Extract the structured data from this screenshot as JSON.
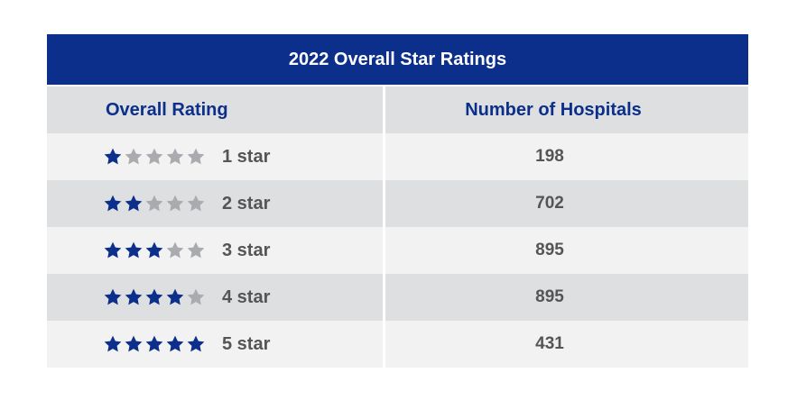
{
  "table": {
    "title": "2022 Overall Star Ratings",
    "headers": {
      "rating": "Overall Rating",
      "count": "Number of Hospitals"
    },
    "rows": [
      {
        "stars_filled": 1,
        "stars_total": 5,
        "label": "1 star",
        "count": "198"
      },
      {
        "stars_filled": 2,
        "stars_total": 5,
        "label": "2 star",
        "count": "702"
      },
      {
        "stars_filled": 3,
        "stars_total": 5,
        "label": "3 star",
        "count": "895"
      },
      {
        "stars_filled": 4,
        "stars_total": 5,
        "label": "4 star",
        "count": "895"
      },
      {
        "stars_filled": 5,
        "stars_total": 5,
        "label": "5 star",
        "count": "431"
      }
    ]
  },
  "colors": {
    "brand_navy": "#0b2f8a",
    "star_filled": "#0b2f8a",
    "star_empty": "#a9abae",
    "text_gray": "#555555",
    "row_light": "#f2f2f3",
    "row_dark": "#dedfe1"
  },
  "icons": {
    "star": "star-icon"
  }
}
